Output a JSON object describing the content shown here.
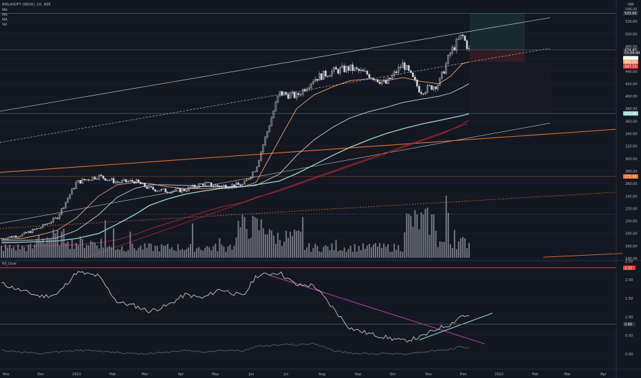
{
  "header": {
    "symbol_line": "BIRLASOFT (INDIA), 1D, NSE",
    "indicators": [
      "MA",
      "MA",
      "MA",
      "Vol"
    ],
    "currency": "INR"
  },
  "sub_pane": {
    "title": "RS_Dual"
  },
  "colors": {
    "background": "#131722",
    "grid": "#1e222d",
    "candle_body": "#d1d4dc",
    "ma_fast": "#d1d4dc",
    "ma_orange": "#f2a36b",
    "ma_teal": "#9ed9d1",
    "ma_red": "#b22833",
    "trend_orange": "#e8722b",
    "channel_line": "#c8c8c8",
    "rs_main": "#c8c8c8",
    "rs_down_trend": "#c03fa3",
    "rs_up_trend": "#9ed9d1",
    "red_level": "#e83d3d"
  },
  "price_axis": {
    "ticks": [
      "540.00",
      "520.00",
      "500.00",
      "480.00",
      "460.00",
      "440.00",
      "420.00",
      "400.00",
      "380.00",
      "360.00",
      "340.00",
      "320.00",
      "300.00",
      "280.00",
      "260.00",
      "240.00",
      "220.00",
      "200.00",
      "180.00",
      "160.00",
      "140.00"
    ],
    "tags": [
      {
        "text": "533.00",
        "color": "#2a2e39"
      },
      {
        "text": "474.40",
        "color": "#2a2e39"
      },
      {
        "text": "03:09:44",
        "color": "#2a2e39"
      },
      {
        "text": "460.99",
        "color": "#ffffff"
      },
      {
        "text": "455.05",
        "color": "#f2a36b"
      },
      {
        "text": "447.73",
        "color": "#e83d3d"
      },
      {
        "text": "372.46",
        "color": "#9ed9d1"
      },
      {
        "text": "271.35",
        "color": "#e8722b"
      }
    ]
  },
  "rs_axis": {
    "ticks": [
      "2.50",
      "2.00",
      "1.50",
      "1.00",
      "0.50",
      "0.00"
    ],
    "tags": [
      {
        "text": "2.32",
        "color": "#e83d3d"
      },
      {
        "text": "0.80",
        "color": "#2a2e39"
      }
    ]
  },
  "time_axis": {
    "labels": [
      "Nov",
      "Dec",
      "2021",
      "Feb",
      "Mar",
      "Apr",
      "May",
      "Jun",
      "Jul",
      "Aug",
      "Sep",
      "Oct",
      "Nov",
      "Dec",
      "2022",
      "Feb",
      "Mar",
      "Apr"
    ]
  },
  "chart_data": [
    {
      "type": "line",
      "title": "BIRLASOFT (INDIA), 1D, NSE",
      "description_of_series": "price",
      "ylim": [
        140,
        540
      ],
      "x": [
        "2020-10-28",
        "2020-11-15",
        "2020-12-01",
        "2020-12-15",
        "2021-01-01",
        "2021-01-20",
        "2021-02-05",
        "2021-02-20",
        "2021-03-05",
        "2021-03-20",
        "2021-04-05",
        "2021-04-20",
        "2021-05-05",
        "2021-05-25",
        "2021-06-05",
        "2021-06-25",
        "2021-07-10",
        "2021-07-25",
        "2021-08-10",
        "2021-08-25",
        "2021-09-10",
        "2021-09-25",
        "2021-10-10",
        "2021-10-25",
        "2021-11-10",
        "2021-11-20",
        "2021-11-30",
        "2021-12-06"
      ],
      "series": [
        {
          "name": "",
          "values": [
            172,
            178,
            190,
            205,
            262,
            272,
            262,
            264,
            252,
            248,
            250,
            260,
            256,
            258,
            285,
            405,
            400,
            428,
            440,
            445,
            435,
            420,
            452,
            408,
            420,
            470,
            498,
            474
          ]
        },
        {
          "name": "",
          "values": [
            170,
            172,
            178,
            185,
            205,
            240,
            258,
            262,
            260,
            255,
            252,
            252,
            253,
            255,
            262,
            330,
            380,
            402,
            415,
            425,
            428,
            425,
            430,
            424,
            420,
            432,
            452,
            455
          ]
        },
        {
          "name": "",
          "values": [
            168,
            169,
            170,
            173,
            185,
            210,
            238,
            252,
            258,
            258,
            257,
            255,
            255,
            255,
            257,
            275,
            305,
            330,
            350,
            365,
            375,
            382,
            390,
            395,
            400,
            405,
            414,
            420
          ]
        },
        {
          "name": "",
          "values": [
            165,
            166,
            167,
            168,
            172,
            180,
            195,
            210,
            225,
            235,
            243,
            248,
            252,
            255,
            258,
            264,
            276,
            290,
            305,
            318,
            330,
            340,
            348,
            355,
            361,
            365,
            369,
            372
          ]
        },
        {
          "name": "",
          "values": [
            160,
            160,
            160,
            161,
            162,
            165,
            170,
            178,
            187,
            196,
            205,
            214,
            222,
            230,
            238,
            248,
            258,
            268,
            278,
            288,
            298,
            308,
            318,
            328,
            338,
            346,
            355,
            362
          ]
        }
      ]
    },
    {
      "type": "bar",
      "description_of_series": "volume",
      "x": [
        "2020-11",
        "2020-12",
        "2021-01",
        "2021-02",
        "2021-03",
        "2021-04",
        "2021-05",
        "2021-06",
        "2021-07",
        "2021-08",
        "2021-09",
        "2021-10",
        "2021-11",
        "2021-12"
      ],
      "values": [
        2,
        4,
        3,
        2,
        2,
        2,
        2,
        6,
        4,
        2,
        2,
        2,
        7,
        3
      ]
    },
    {
      "type": "line",
      "title": "RS_Dual",
      "ylim": [
        -0.2,
        2.5
      ],
      "x": [
        "2020-10-28",
        "2020-11-15",
        "2020-12-01",
        "2020-12-15",
        "2021-01-01",
        "2021-01-20",
        "2021-02-05",
        "2021-02-20",
        "2021-03-05",
        "2021-03-20",
        "2021-04-05",
        "2021-04-20",
        "2021-05-05",
        "2021-05-25",
        "2021-06-05",
        "2021-06-25",
        "2021-07-10",
        "2021-07-25",
        "2021-08-10",
        "2021-08-25",
        "2021-09-10",
        "2021-09-25",
        "2021-10-10",
        "2021-10-25",
        "2021-11-10",
        "2021-11-20",
        "2021-11-30",
        "2021-12-06"
      ],
      "series": [
        {
          "name": "",
          "values": [
            1.9,
            1.7,
            1.55,
            1.6,
            2.2,
            2.1,
            1.4,
            1.3,
            1.15,
            1.3,
            1.6,
            1.5,
            1.75,
            1.55,
            2.1,
            2.2,
            1.85,
            1.85,
            1.25,
            0.7,
            0.55,
            0.45,
            0.35,
            0.45,
            0.7,
            0.8,
            1.05,
            1.0
          ]
        },
        {
          "name": "",
          "values": [
            0.1,
            0.05,
            0.0,
            0.05,
            0.1,
            0.08,
            0.05,
            0.0,
            0.02,
            0.05,
            0.1,
            0.05,
            0.1,
            0.08,
            0.2,
            0.25,
            0.25,
            0.28,
            0.1,
            0.02,
            0.0,
            0.02,
            0.0,
            0.05,
            0.1,
            0.12,
            0.2,
            0.15
          ]
        }
      ]
    }
  ]
}
